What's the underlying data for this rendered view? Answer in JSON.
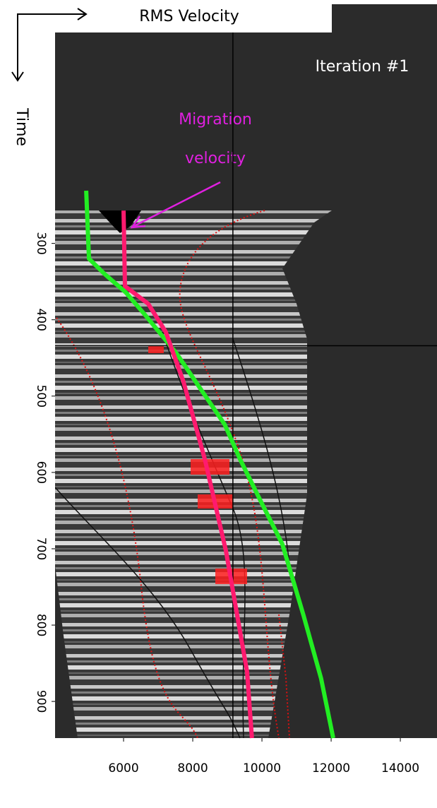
{
  "chart_data": {
    "type": "line",
    "title": "RMS Velocity",
    "y_label": "Time",
    "corner_label": "Iteration #1",
    "annotation": [
      "Migration",
      "velocity"
    ],
    "xlim": [
      4020,
      15060
    ],
    "xticks": [
      6000,
      8000,
      10000,
      12000,
      14000
    ],
    "ylim": [
      20,
      948
    ],
    "y_inverted": true,
    "yticks": [
      300,
      400,
      500,
      600,
      700,
      800,
      900
    ],
    "cursor": {
      "x": 9160,
      "y": 434
    },
    "series": [
      {
        "color": "#22ee22",
        "x": [
          4920,
          5000,
          5450,
          6060,
          6610,
          7530,
          8920,
          9370,
          9980,
          10590,
          11200,
          11710,
          12060
        ],
        "values": [
          231,
          320,
          340,
          364,
          393,
          444,
          537,
          583,
          639,
          694,
          787,
          870,
          948
        ]
      },
      {
        "color": "#ff1a6e",
        "x": [
          6000,
          6040,
          6710,
          7220,
          7730,
          8350,
          8960,
          9570,
          9710
        ],
        "values": [
          257,
          356,
          379,
          416,
          481,
          583,
          703,
          861,
          948
        ]
      }
    ]
  }
}
